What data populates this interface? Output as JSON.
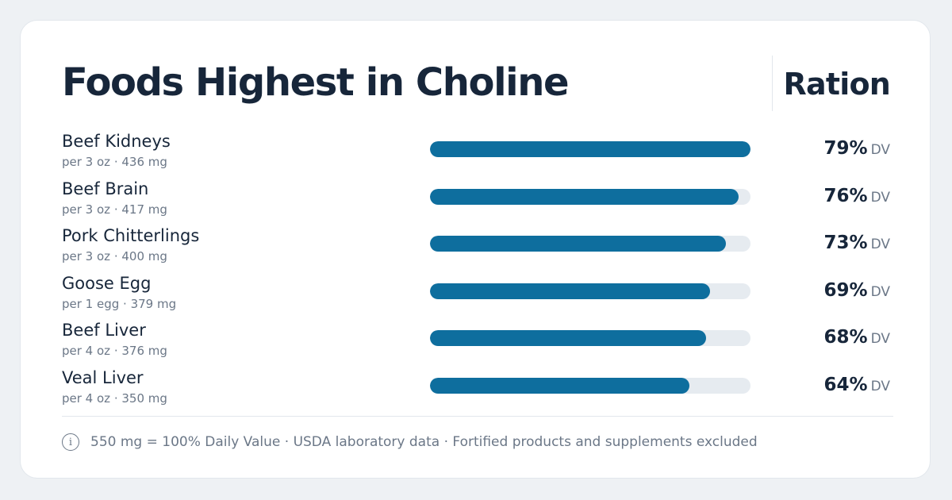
{
  "header": {
    "title": "Foods Highest in Choline",
    "brand": "Ration"
  },
  "chart_data": {
    "type": "bar",
    "orientation": "horizontal",
    "title": "Foods Highest in Choline",
    "value_unit": "DV",
    "xlim": [
      0,
      79
    ],
    "categories": [
      "Beef Kidneys",
      "Beef Brain",
      "Pork Chitterlings",
      "Goose Egg",
      "Beef Liver",
      "Veal Liver"
    ],
    "series": [
      {
        "values": [
          79,
          76,
          73,
          69,
          68,
          64
        ]
      }
    ],
    "rows": [
      {
        "name": "Beef Kidneys",
        "serving": "per 3 oz · 436 mg",
        "value": 79,
        "value_label": "79%",
        "unit": "DV"
      },
      {
        "name": "Beef Brain",
        "serving": "per 3 oz · 417 mg",
        "value": 76,
        "value_label": "76%",
        "unit": "DV"
      },
      {
        "name": "Pork Chitterlings",
        "serving": "per 3 oz · 400 mg",
        "value": 73,
        "value_label": "73%",
        "unit": "DV"
      },
      {
        "name": "Goose Egg",
        "serving": "per 1 egg · 379 mg",
        "value": 69,
        "value_label": "69%",
        "unit": "DV"
      },
      {
        "name": "Beef Liver",
        "serving": "per 4 oz · 376 mg",
        "value": 68,
        "value_label": "68%",
        "unit": "DV"
      },
      {
        "name": "Veal Liver",
        "serving": "per 4 oz · 350 mg",
        "value": 64,
        "value_label": "64%",
        "unit": "DV"
      }
    ],
    "grid": false,
    "legend": "none"
  },
  "footer": {
    "icon": "info-icon",
    "icon_glyph": "i",
    "note": "550 mg = 100% Daily Value · USDA laboratory data · Fortified products and supplements excluded"
  },
  "colors": {
    "bar": "#0e6e9e",
    "track": "#e6ebf0",
    "text": "#17263a",
    "muted": "#6b7787"
  }
}
